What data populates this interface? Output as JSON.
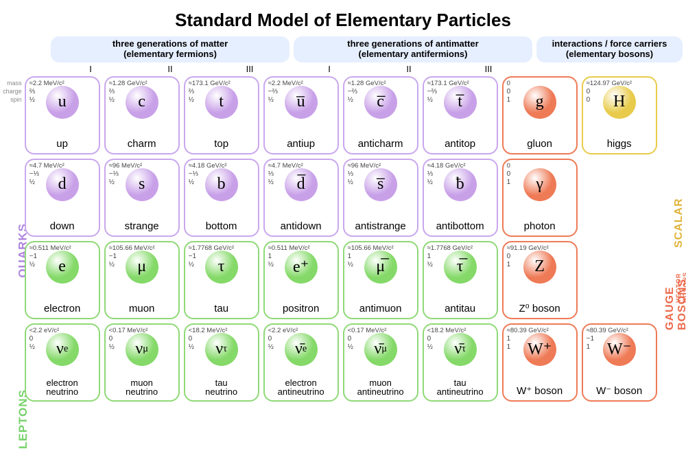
{
  "title": "Standard Model of Elementary Particles",
  "header_bg": "#e6efff",
  "headers": {
    "matter": "three generations of matter\n(elementary fermions)",
    "antimatter": "three generations of antimatter\n(elementary antifermions)",
    "force": "interactions / force carriers\n(elementary bosons)"
  },
  "romans": [
    "I",
    "II",
    "III",
    "I",
    "II",
    "III"
  ],
  "prop_labels": [
    "mass",
    "charge",
    "spin"
  ],
  "side_labels": {
    "quarks": "QUARKS",
    "leptons": "LEPTONS"
  },
  "right_labels": {
    "gauge": "GAUGE BOSONS",
    "vector": "VECTOR BOSONS",
    "scalar": "SCALAR BOSONS"
  },
  "colors": {
    "quark_border": "#c9a7ee",
    "quark_ball": "#c8a0e8",
    "lepton_border": "#8fd977",
    "lepton_ball": "#84d968",
    "gauge_border": "#ee7a56",
    "gauge_ball": "#ee7a56",
    "scalar_border": "#e8cb4a",
    "scalar_ball": "#e8cb4a"
  },
  "cells": [
    {
      "row": 0,
      "col": 0,
      "group": "quark",
      "sym": "u",
      "name": "up",
      "mass": "≈2.2 MeV/c²",
      "charge": "⅔",
      "spin": "½"
    },
    {
      "row": 0,
      "col": 1,
      "group": "quark",
      "sym": "c",
      "name": "charm",
      "mass": "≈1.28 GeV/c²",
      "charge": "⅔",
      "spin": "½"
    },
    {
      "row": 0,
      "col": 2,
      "group": "quark",
      "sym": "t",
      "name": "top",
      "mass": "≈173.1 GeV/c²",
      "charge": "⅔",
      "spin": "½"
    },
    {
      "row": 0,
      "col": 3,
      "group": "quark",
      "sym": "u̅",
      "name": "antiup",
      "mass": "≈2.2 MeV/c²",
      "charge": "−⅔",
      "spin": "½"
    },
    {
      "row": 0,
      "col": 4,
      "group": "quark",
      "sym": "c̅",
      "name": "anticharm",
      "mass": "≈1.28 GeV/c²",
      "charge": "−⅔",
      "spin": "½"
    },
    {
      "row": 0,
      "col": 5,
      "group": "quark",
      "sym": "t̅",
      "name": "antitop",
      "mass": "≈173.1 GeV/c²",
      "charge": "−⅔",
      "spin": "½"
    },
    {
      "row": 0,
      "col": 6,
      "group": "gauge",
      "sym": "g",
      "name": "gluon",
      "mass": "0",
      "charge": "0",
      "spin": "1"
    },
    {
      "row": 0,
      "col": 7,
      "group": "scalar",
      "sym": "H",
      "name": "higgs",
      "mass": "≈124.97 GeV/c²",
      "charge": "0",
      "spin": "0"
    },
    {
      "row": 1,
      "col": 0,
      "group": "quark",
      "sym": "d",
      "name": "down",
      "mass": "≈4.7 MeV/c²",
      "charge": "−⅓",
      "spin": "½"
    },
    {
      "row": 1,
      "col": 1,
      "group": "quark",
      "sym": "s",
      "name": "strange",
      "mass": "≈96 MeV/c²",
      "charge": "−⅓",
      "spin": "½"
    },
    {
      "row": 1,
      "col": 2,
      "group": "quark",
      "sym": "b",
      "name": "bottom",
      "mass": "≈4.18 GeV/c²",
      "charge": "−⅓",
      "spin": "½"
    },
    {
      "row": 1,
      "col": 3,
      "group": "quark",
      "sym": "d̅",
      "name": "antidown",
      "mass": "≈4.7 MeV/c²",
      "charge": "⅓",
      "spin": "½"
    },
    {
      "row": 1,
      "col": 4,
      "group": "quark",
      "sym": "s̅",
      "name": "antistrange",
      "mass": "≈96 MeV/c²",
      "charge": "⅓",
      "spin": "½"
    },
    {
      "row": 1,
      "col": 5,
      "group": "quark",
      "sym": "ƀ",
      "name": "antibottom",
      "mass": "≈4.18 GeV/c²",
      "charge": "⅓",
      "spin": "½"
    },
    {
      "row": 1,
      "col": 6,
      "group": "gauge",
      "sym": "γ",
      "name": "photon",
      "mass": "0",
      "charge": "0",
      "spin": "1"
    },
    {
      "row": 2,
      "col": 0,
      "group": "lepton",
      "sym": "e",
      "name": "electron",
      "mass": "≈0.511 MeV/c²",
      "charge": "−1",
      "spin": "½"
    },
    {
      "row": 2,
      "col": 1,
      "group": "lepton",
      "sym": "μ",
      "name": "muon",
      "mass": "≈105.66 MeV/c²",
      "charge": "−1",
      "spin": "½"
    },
    {
      "row": 2,
      "col": 2,
      "group": "lepton",
      "sym": "τ",
      "name": "tau",
      "mass": "≈1.7768 GeV/c²",
      "charge": "−1",
      "spin": "½"
    },
    {
      "row": 2,
      "col": 3,
      "group": "lepton",
      "sym": "e⁺",
      "name": "positron",
      "mass": "≈0.511 MeV/c²",
      "charge": "1",
      "spin": "½"
    },
    {
      "row": 2,
      "col": 4,
      "group": "lepton",
      "sym": "μ̅",
      "name": "antimuon",
      "mass": "≈105.66 MeV/c²",
      "charge": "1",
      "spin": "½"
    },
    {
      "row": 2,
      "col": 5,
      "group": "lepton",
      "sym": "τ̅",
      "name": "antitau",
      "mass": "≈1.7768 GeV/c²",
      "charge": "1",
      "spin": "½"
    },
    {
      "row": 2,
      "col": 6,
      "group": "gauge",
      "sym": "Z",
      "name": "Z⁰ boson",
      "mass": "≈91.19 GeV/c²",
      "charge": "0",
      "spin": "1"
    },
    {
      "row": 3,
      "col": 0,
      "group": "lepton",
      "sym": "νe",
      "sub": true,
      "name": "electron\nneutrino",
      "mass": "<2.2 eV/c²",
      "charge": "0",
      "spin": "½",
      "small": true
    },
    {
      "row": 3,
      "col": 1,
      "group": "lepton",
      "sym": "νμ",
      "sub": true,
      "name": "muon\nneutrino",
      "mass": "<0.17 MeV/c²",
      "charge": "0",
      "spin": "½",
      "small": true
    },
    {
      "row": 3,
      "col": 2,
      "group": "lepton",
      "sym": "ντ",
      "sub": true,
      "name": "tau\nneutrino",
      "mass": "<18.2 MeV/c²",
      "charge": "0",
      "spin": "½",
      "small": true
    },
    {
      "row": 3,
      "col": 3,
      "group": "lepton",
      "sym": "ν̄e",
      "sub": true,
      "name": "electron\nantineutrino",
      "mass": "<2.2 eV/c²",
      "charge": "0",
      "spin": "½",
      "small": true
    },
    {
      "row": 3,
      "col": 4,
      "group": "lepton",
      "sym": "ν̄μ",
      "sub": true,
      "name": "muon\nantineutrino",
      "mass": "<0.17 MeV/c²",
      "charge": "0",
      "spin": "½",
      "small": true
    },
    {
      "row": 3,
      "col": 5,
      "group": "lepton",
      "sym": "ν̄τ",
      "sub": true,
      "name": "tau\nantineutrino",
      "mass": "<18.2 MeV/c²",
      "charge": "0",
      "spin": "½",
      "small": true
    },
    {
      "row": 3,
      "col": 6,
      "group": "gauge",
      "sym": "W⁺",
      "name": "W⁺ boson",
      "mass": "≈80.39 GeV/c²",
      "charge": "1",
      "spin": "1"
    },
    {
      "row": 3,
      "col": 7,
      "group": "gauge",
      "sym": "W⁻",
      "name": "W⁻ boson",
      "mass": "≈80.39 GeV/c²",
      "charge": "−1",
      "spin": "1"
    }
  ]
}
